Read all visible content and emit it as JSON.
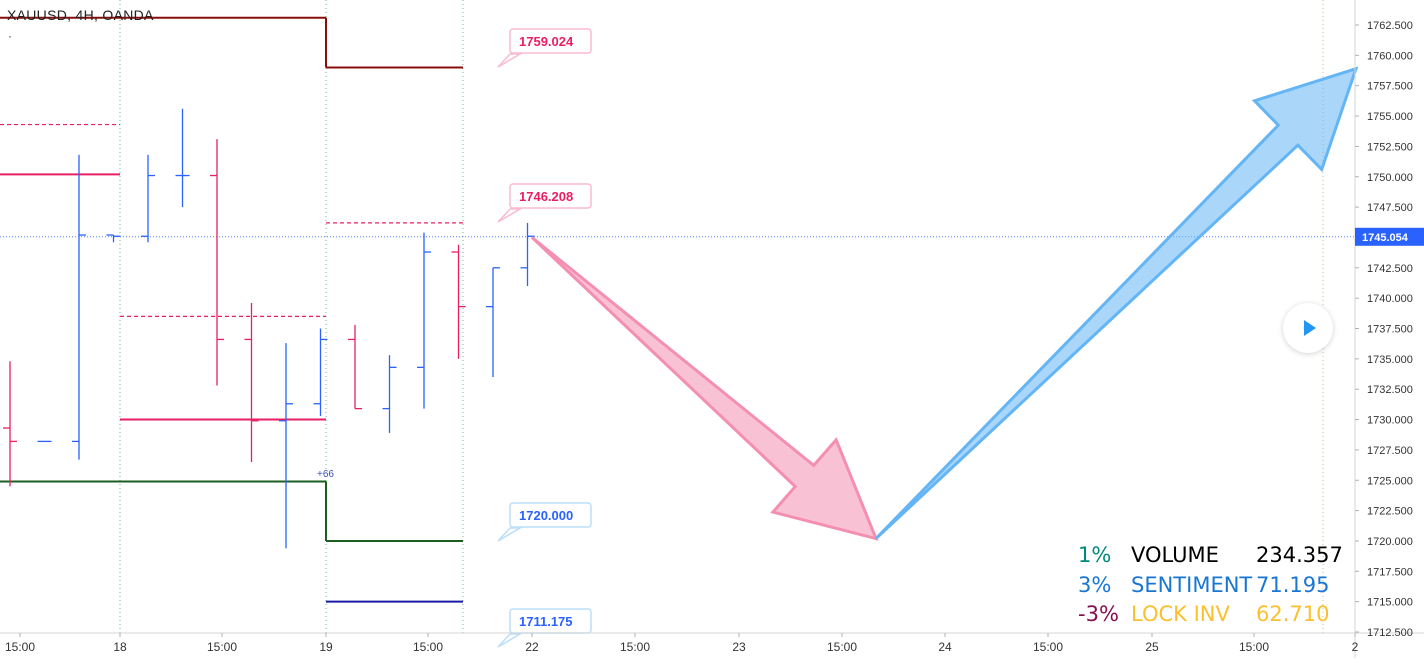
{
  "symbol": {
    "label": "XAUUSD, 4H, OANDA",
    "sub": "·"
  },
  "price_axis": {
    "ticks": [
      "1762.500",
      "1760.000",
      "1757.500",
      "1755.000",
      "1752.500",
      "1750.000",
      "1747.500",
      "1745.000",
      "1742.500",
      "1740.000",
      "1737.500",
      "1735.000",
      "1732.500",
      "1730.000",
      "1727.500",
      "1725.000",
      "1722.500",
      "1720.000",
      "1717.500",
      "1715.000",
      "1712.500"
    ],
    "current": "1745.054"
  },
  "time_axis": {
    "ticks": [
      "15:00",
      "18",
      "15:00",
      "19",
      "15:00",
      "22",
      "15:00",
      "23",
      "15:00",
      "24",
      "15:00",
      "25",
      "15:00",
      "2"
    ]
  },
  "annotations": {
    "offset_label": "+66"
  },
  "price_callouts": [
    {
      "label": "1759.024",
      "color": "#e91e63"
    },
    {
      "label": "1746.208",
      "color": "#e91e63"
    },
    {
      "label": "1720.000",
      "color": "#2962ff"
    },
    {
      "label": "1711.175",
      "color": "#2962ff"
    }
  ],
  "stats": [
    {
      "pct": "1%",
      "pct_color": "#00897b",
      "name": "VOLUME",
      "name_color": "#000000",
      "value": "234.357",
      "value_color": "#000000"
    },
    {
      "pct": "3%",
      "pct_color": "#1976d2",
      "name": "SENTIMENT",
      "name_color": "#1976d2",
      "value": "71.195",
      "value_color": "#1976d2"
    },
    {
      "pct": "-3%",
      "pct_color": "#880e4f",
      "name": "LOCK INV",
      "name_color": "#fbc02d",
      "value": "62.710",
      "value_color": "#fbc02d"
    }
  ],
  "chart_data": {
    "type": "line",
    "title": "XAUUSD, 4H, OANDA",
    "ylim": [
      1712.5,
      1763.5
    ],
    "xlabel": "",
    "ylabel": "",
    "grid": false,
    "colors": {
      "bar": "#2962ff",
      "pink": "#e91e63",
      "dark_red": "#880e0e",
      "green": "#1b5e20",
      "blue": "#1a1aa8",
      "arrow_down": "#f48fb1",
      "arrow_up": "#64b5f6"
    },
    "ohlc_bars": [
      {
        "open": 1729.3,
        "high": 1734.8,
        "low": 1724.5,
        "close": 1728.2,
        "color": "#e91e63"
      },
      {
        "open": 1728.2,
        "high": 1728.2,
        "low": 1728.2,
        "close": 1728.2,
        "color": "#2962ff"
      },
      {
        "open": 1728.2,
        "high": 1751.8,
        "low": 1726.7,
        "close": 1745.2,
        "color": "#2962ff"
      },
      {
        "open": 1745.2,
        "high": 1745.2,
        "low": 1744.6,
        "close": 1745.1,
        "color": "#2962ff"
      },
      {
        "open": 1745.1,
        "high": 1751.8,
        "low": 1744.6,
        "close": 1750.1,
        "color": "#2962ff"
      },
      {
        "open": 1750.1,
        "high": 1755.6,
        "low": 1747.5,
        "close": 1750.1,
        "color": "#2962ff"
      },
      {
        "open": 1750.1,
        "high": 1753.1,
        "low": 1732.8,
        "close": 1736.6,
        "color": "#e91e63"
      },
      {
        "open": 1736.6,
        "high": 1739.6,
        "low": 1726.5,
        "close": 1729.9,
        "color": "#e91e63"
      },
      {
        "open": 1729.9,
        "high": 1736.3,
        "low": 1719.4,
        "close": 1731.3,
        "color": "#2962ff"
      },
      {
        "open": 1731.3,
        "high": 1737.5,
        "low": 1730.3,
        "close": 1736.6,
        "color": "#2962ff"
      },
      {
        "open": 1736.6,
        "high": 1737.8,
        "low": 1730.9,
        "close": 1730.9,
        "color": "#e91e63"
      },
      {
        "open": 1730.9,
        "high": 1735.3,
        "low": 1728.9,
        "close": 1734.3,
        "color": "#2962ff"
      },
      {
        "open": 1734.3,
        "high": 1745.4,
        "low": 1730.9,
        "close": 1743.8,
        "color": "#2962ff"
      },
      {
        "open": 1743.8,
        "high": 1744.4,
        "low": 1735.0,
        "close": 1739.3,
        "color": "#e91e63"
      },
      {
        "open": 1739.3,
        "high": 1742.5,
        "low": 1733.5,
        "close": 1742.5,
        "color": "#2962ff"
      },
      {
        "open": 1742.5,
        "high": 1746.2,
        "low": 1741.0,
        "close": 1745.1,
        "color": "#2962ff"
      }
    ],
    "levels": [
      {
        "price": 1763.1,
        "color": "#880e0e"
      },
      {
        "price": 1759.0,
        "color": "#880e0e"
      },
      {
        "price": 1750.2,
        "color": "#e91e63"
      },
      {
        "price": 1730.0,
        "color": "#e91e63"
      },
      {
        "price": 1724.9,
        "color": "#1b5e20"
      },
      {
        "price": 1720.0,
        "color": "#1b5e20"
      },
      {
        "price": 1715.0,
        "color": "#1a1aa8"
      }
    ],
    "dashed_levels": [
      {
        "price": 1754.3,
        "color": "#e91e63"
      },
      {
        "price": 1738.5,
        "color": "#e91e63"
      },
      {
        "price": 1746.2,
        "color": "#e91e63"
      }
    ],
    "arrows": [
      {
        "direction": "down",
        "from": 1745.0,
        "to": 1720.2,
        "color": "#f48fb1"
      },
      {
        "direction": "up",
        "from": 1720.2,
        "to": 1758.9,
        "color": "#64b5f6"
      }
    ]
  }
}
